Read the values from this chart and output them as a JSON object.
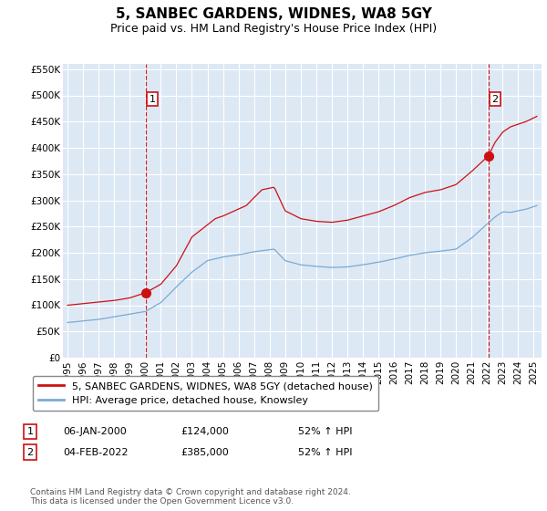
{
  "title": "5, SANBEC GARDENS, WIDNES, WA8 5GY",
  "subtitle": "Price paid vs. HM Land Registry's House Price Index (HPI)",
  "ylim": [
    0,
    560000
  ],
  "yticks": [
    0,
    50000,
    100000,
    150000,
    200000,
    250000,
    300000,
    350000,
    400000,
    450000,
    500000,
    550000
  ],
  "ytick_labels": [
    "£0",
    "£50K",
    "£100K",
    "£150K",
    "£200K",
    "£250K",
    "£300K",
    "£350K",
    "£400K",
    "£450K",
    "£500K",
    "£550K"
  ],
  "xlim_start": 1994.7,
  "xlim_end": 2025.5,
  "background_color": "#dde8f5",
  "grid_color": "#ffffff",
  "sale1_date": 2000.04,
  "sale1_price": 124000,
  "sale1_label": "1",
  "sale2_date": 2022.09,
  "sale2_price": 385000,
  "sale2_label": "2",
  "red_line_color": "#cc1111",
  "blue_line_color": "#7aaad0",
  "legend_label_red": "5, SANBEC GARDENS, WIDNES, WA8 5GY (detached house)",
  "legend_label_blue": "HPI: Average price, detached house, Knowsley",
  "footer": "Contains HM Land Registry data © Crown copyright and database right 2024.\nThis data is licensed under the Open Government Licence v3.0.",
  "title_fontsize": 11,
  "subtitle_fontsize": 9
}
